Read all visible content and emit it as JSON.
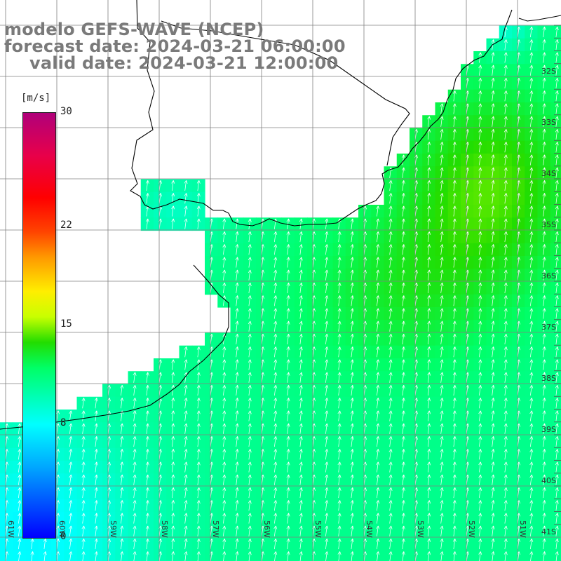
{
  "title": {
    "line1": "modelo GEFS-WAVE (NCEP)",
    "line2": "forecast date: 2024-03-21 06:00:00",
    "line3": "valid date: 2024-03-21 12:00:00"
  },
  "colorbar": {
    "unit": "[m/s]",
    "ticks": [
      {
        "label": "30",
        "value": 30
      },
      {
        "label": "22",
        "value": 22
      },
      {
        "label": "15",
        "value": 15
      },
      {
        "label": "8",
        "value": 8
      },
      {
        "label": "0",
        "value": 0
      }
    ],
    "range": [
      0,
      30
    ]
  },
  "map": {
    "lat_labels": [
      "32S",
      "33S",
      "34S",
      "35S",
      "36S",
      "37S",
      "38S",
      "39S",
      "40S",
      "41S"
    ],
    "lon_labels": [
      "61W",
      "60W",
      "59W",
      "58W",
      "57W",
      "56W",
      "55W",
      "54W",
      "53W",
      "52W",
      "51W"
    ],
    "colors": {
      "land": "#ffffff",
      "grid": "#808080",
      "coast": "#000000",
      "arrow": "#ffffff"
    }
  }
}
